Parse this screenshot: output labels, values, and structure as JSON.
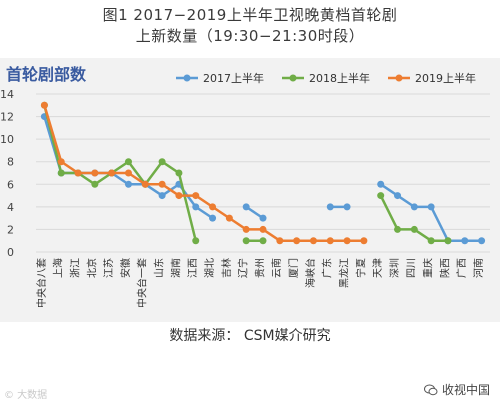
{
  "title": {
    "line1": "图1  2017−2019上半年卫视晚黄档首轮剧",
    "line2": "上新数量（19:30−21:30时段）"
  },
  "source": "数据来源：  CSM媒介研究",
  "watermark_left": "© 大数据",
  "watermark_right": "收视中国",
  "chart_data": {
    "type": "line",
    "title": "首轮剧部数",
    "ylim": [
      0,
      14
    ],
    "yticks": [
      0,
      2,
      4,
      6,
      8,
      10,
      12,
      14
    ],
    "grid": true,
    "legend_position": "top-right",
    "categories": [
      "中央台八套",
      "上海",
      "浙江",
      "北京",
      "江苏",
      "安徽",
      "中央台一套",
      "山东",
      "湖南",
      "江西",
      "湖北",
      "吉林",
      "辽宁",
      "贵州",
      "云南",
      "厦门",
      "海峡台",
      "广东",
      "黑龙江",
      "宁夏",
      "天津",
      "深圳",
      "四川",
      "重庆",
      "陕西",
      "广西",
      "河南"
    ],
    "series": [
      {
        "name": "2017上半年",
        "color": "#5b9bd5",
        "values": [
          12,
          7,
          7,
          7,
          7,
          6,
          6,
          5,
          6,
          4,
          3,
          null,
          4,
          3,
          null,
          null,
          null,
          4,
          4,
          null,
          6,
          5,
          4,
          4,
          1,
          1,
          1
        ]
      },
      {
        "name": "2018上半年",
        "color": "#70ad47",
        "values": [
          13,
          7,
          7,
          6,
          7,
          8,
          6,
          8,
          7,
          1,
          null,
          null,
          1,
          1,
          null,
          null,
          null,
          null,
          null,
          null,
          5,
          2,
          2,
          1,
          1,
          null,
          null
        ]
      },
      {
        "name": "2019上半年",
        "color": "#ed7d31",
        "values": [
          13,
          8,
          7,
          7,
          7,
          7,
          6,
          6,
          5,
          5,
          4,
          3,
          2,
          2,
          1,
          1,
          1,
          1,
          1,
          1,
          null,
          null,
          null,
          null,
          null,
          null,
          null
        ]
      }
    ]
  }
}
